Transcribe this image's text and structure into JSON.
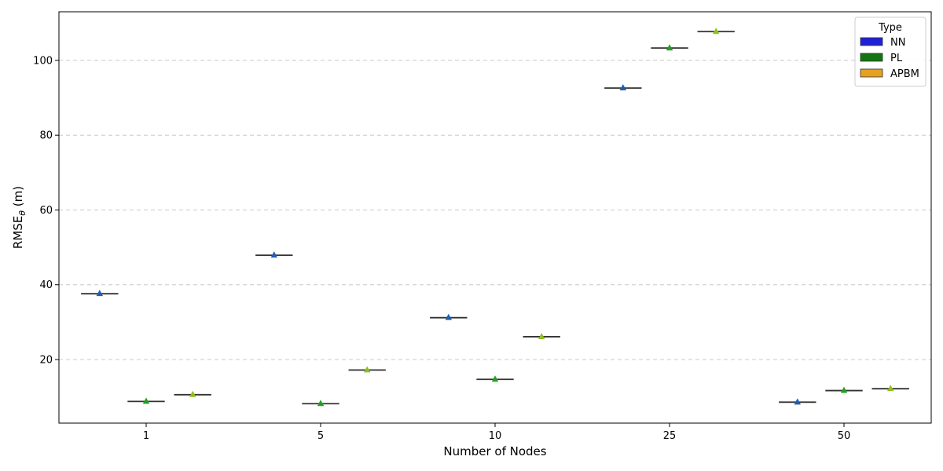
{
  "chart_data": {
    "type": "box",
    "xlabel": "Number of Nodes",
    "ylabel": "RMSE",
    "ylabel_subscript": "θ",
    "ylabel_unit": " (m)",
    "categories": [
      "1",
      "5",
      "10",
      "25",
      "50"
    ],
    "ylim": [
      3,
      113
    ],
    "yticks": [
      20,
      40,
      60,
      80,
      100
    ],
    "grid": "y-dashed",
    "legend": {
      "title": "Type",
      "placement": "top-right"
    },
    "series": [
      {
        "name": "NN",
        "color": "#2020d8",
        "marker_color": "#1f5fb4",
        "values": [
          37.6,
          47.9,
          31.2,
          92.6,
          8.6
        ]
      },
      {
        "name": "PL",
        "color": "#127512",
        "marker_color": "#22a022",
        "values": [
          8.8,
          8.2,
          14.7,
          103.3,
          11.7
        ]
      },
      {
        "name": "APBM",
        "color": "#e8a020",
        "marker_color": "#8fbf1f",
        "values": [
          10.6,
          17.2,
          26.1,
          107.7,
          12.2
        ]
      }
    ]
  }
}
